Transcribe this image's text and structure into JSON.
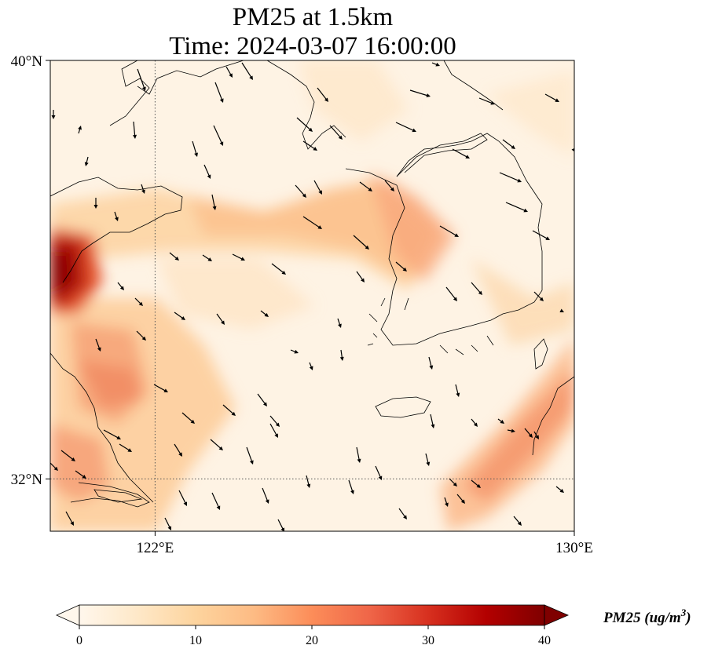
{
  "title": {
    "line1": "PM25 at 1.5km",
    "line2": "Time: 2024-03-07 16:00:00"
  },
  "map": {
    "lat_range": [
      31.0,
      40.0
    ],
    "lon_range": [
      120.0,
      130.0
    ],
    "gridlines": {
      "lat": [
        32
      ],
      "lon": [
        122
      ],
      "style": "dotted"
    },
    "lat_ticks": [
      {
        "value": 40,
        "label": "40°N"
      },
      {
        "value": 32,
        "label": "32°N"
      }
    ],
    "lon_ticks": [
      {
        "value": 122,
        "label": "122°E"
      },
      {
        "value": 130,
        "label": "130°E"
      }
    ],
    "variable": "PM25",
    "wind_vectors": "black arrows"
  },
  "colorbar": {
    "colormap": "OrRd",
    "min": 0,
    "max": 40,
    "extend": "both",
    "ticks": [
      "0",
      "10",
      "20",
      "30",
      "40"
    ],
    "label": "PM25 (ug/m",
    "label_sup": "3",
    "label_end": ")",
    "colors": [
      "#fff7ec",
      "#fee8c8",
      "#fdd49e",
      "#fdbb84",
      "#fc8d59",
      "#ef6548",
      "#d7301f",
      "#b30000",
      "#7f0000"
    ]
  }
}
